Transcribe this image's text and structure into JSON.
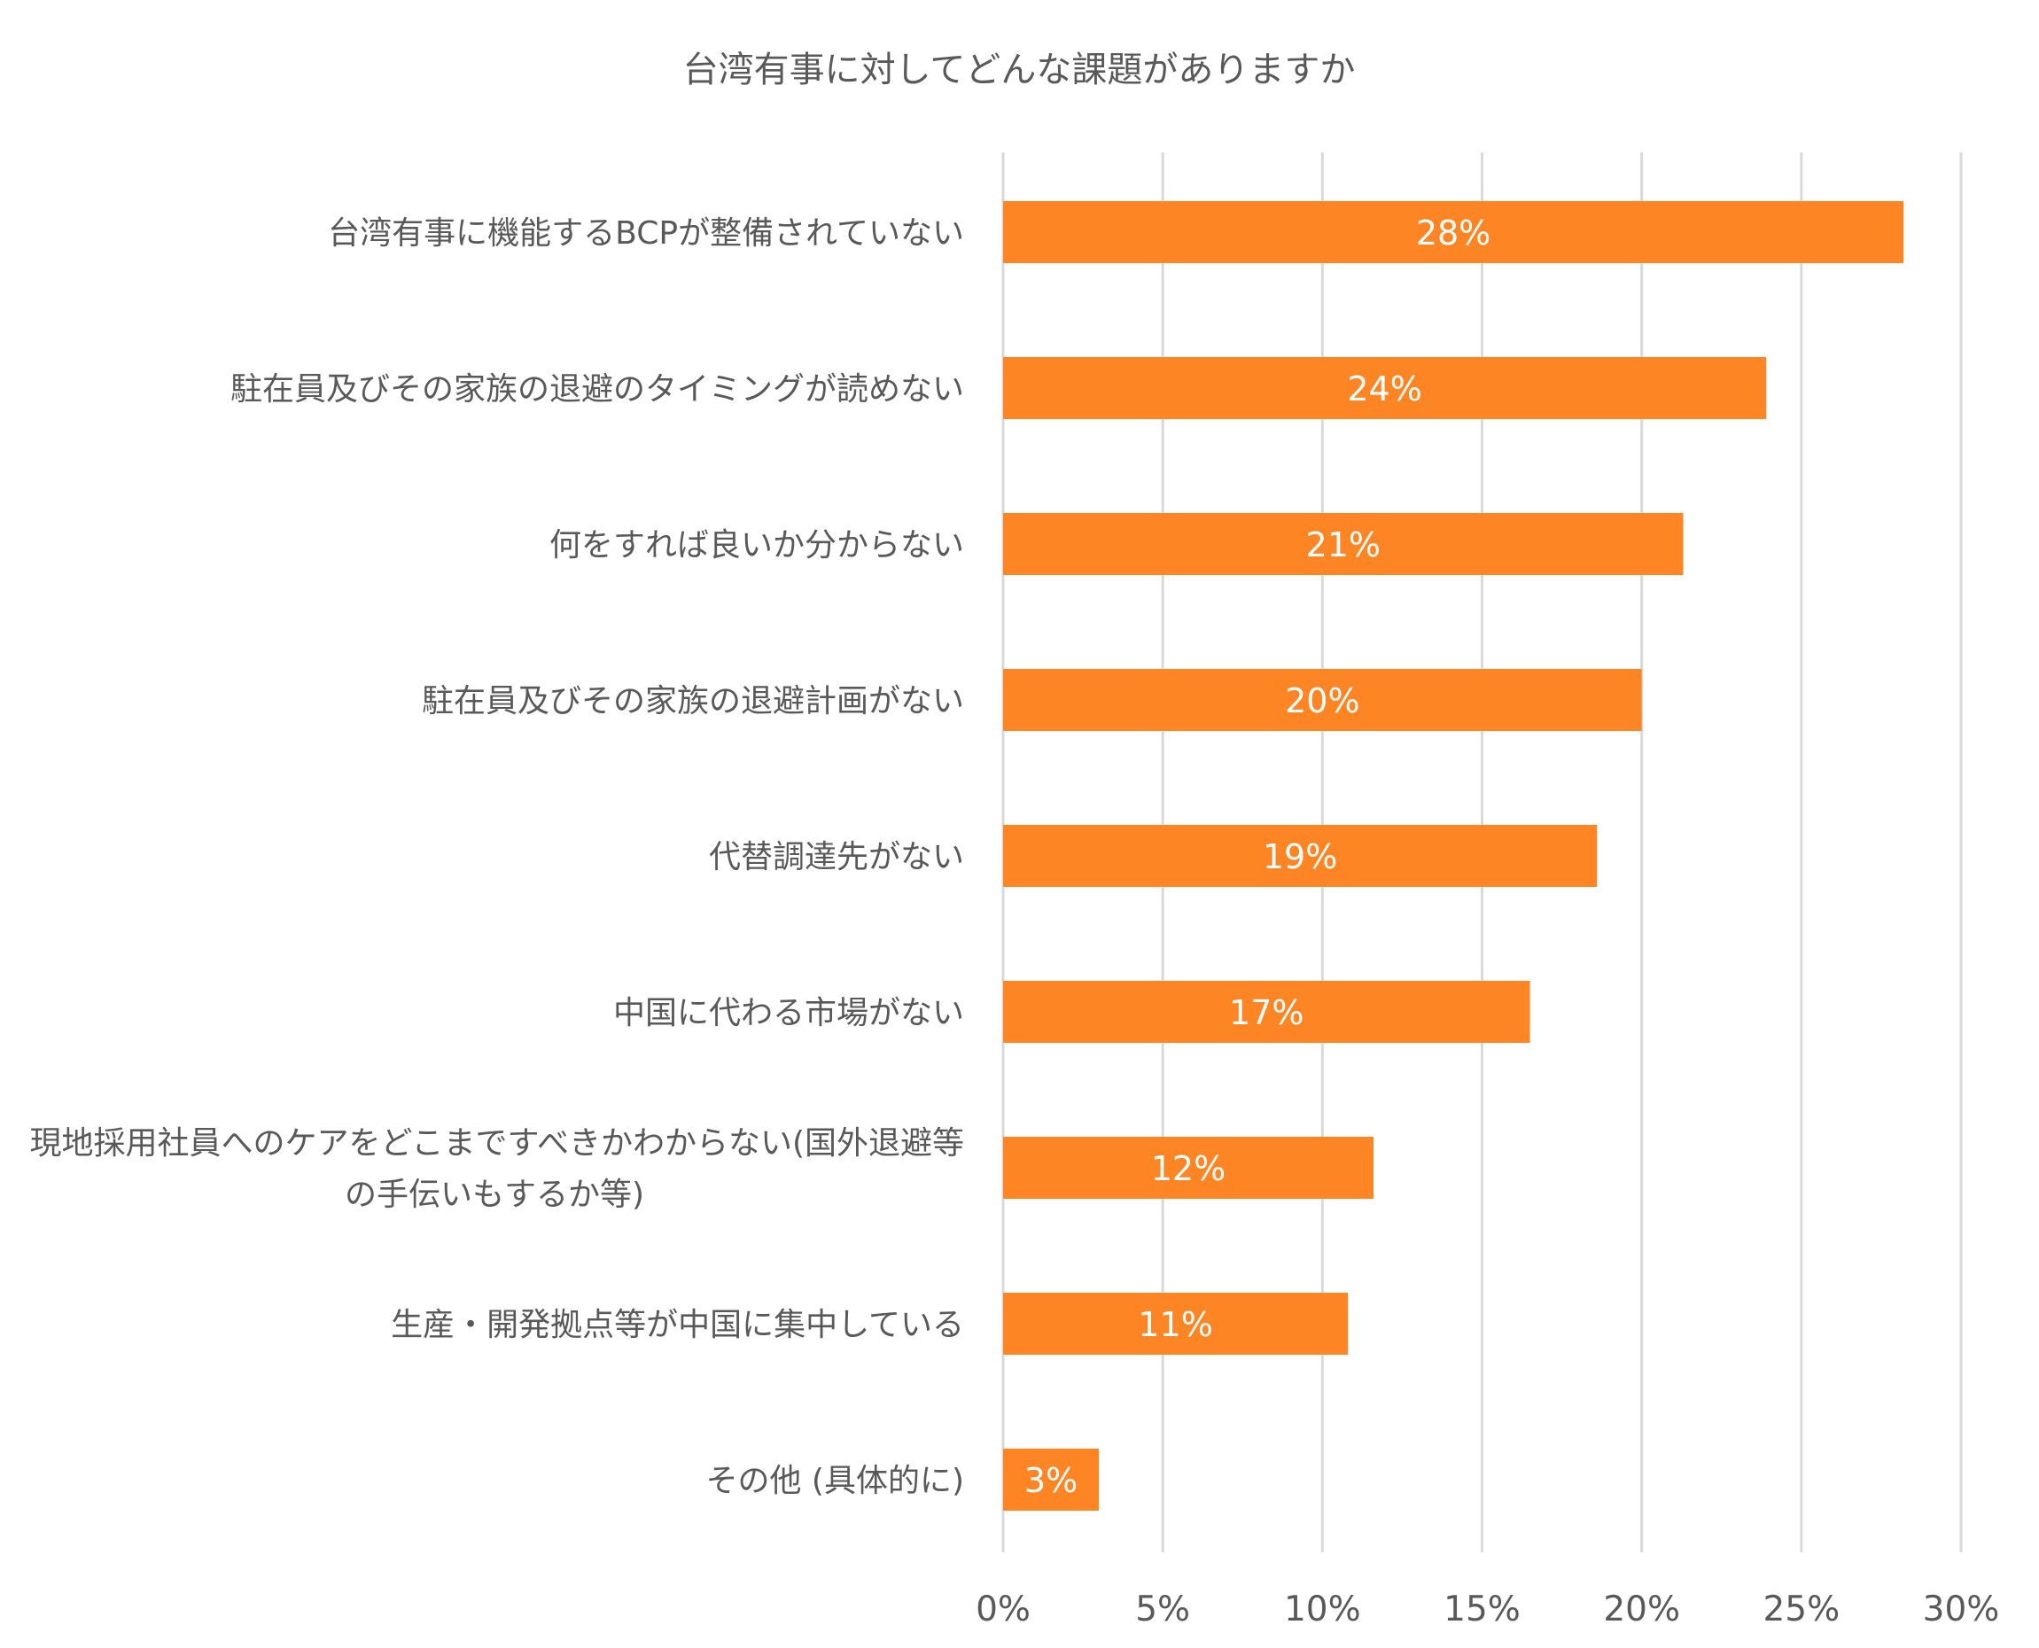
{
  "chart_data": {
    "type": "bar",
    "orientation": "horizontal",
    "title": "台湾有事に対してどんな課題がありますか",
    "categories": [
      [
        "台湾有事に機能するBCPが整備されていない"
      ],
      [
        "駐在員及びその家族の退避のタイミングが読めない"
      ],
      [
        "何をすれば良いか分からない"
      ],
      [
        "駐在員及びその家族の退避計画がない"
      ],
      [
        "代替調達先がない"
      ],
      [
        "中国に代わる市場がない"
      ],
      [
        "現地採用社員へのケアをどこまですべきかわからない(国外退避等",
        "の手伝いもするか等)"
      ],
      [
        "生産・開発拠点等が中国に集中している"
      ],
      [
        "その他 (具体的に)"
      ]
    ],
    "values": [
      28.2,
      23.9,
      21.3,
      20.0,
      18.6,
      16.5,
      11.6,
      10.8,
      3.0
    ],
    "data_labels": [
      "28%",
      "24%",
      "21%",
      "20%",
      "19%",
      "17%",
      "12%",
      "11%",
      "3%"
    ],
    "xlim": [
      0,
      30
    ],
    "x_ticks": [
      0,
      5,
      10,
      15,
      20,
      25,
      30
    ],
    "x_tick_labels": [
      "0%",
      "5%",
      "10%",
      "15%",
      "20%",
      "25%",
      "30%"
    ],
    "grid": true,
    "legend": "none",
    "bar_color": "#FD8523"
  }
}
